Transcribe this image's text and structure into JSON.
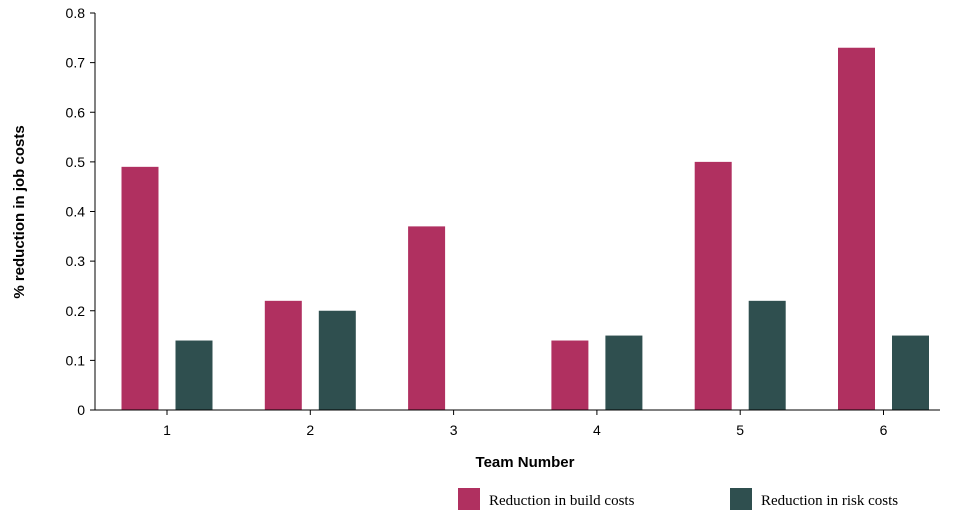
{
  "chart_data": {
    "type": "bar",
    "title": "",
    "xlabel": "Team Number",
    "ylabel": "% reduction in job costs",
    "categories": [
      "1",
      "2",
      "3",
      "4",
      "5",
      "6"
    ],
    "series": [
      {
        "name": "Reduction in build costs",
        "values": [
          0.49,
          0.22,
          0.37,
          0.14,
          0.5,
          0.73
        ],
        "color": "#b03060"
      },
      {
        "name": "Reduction in risk costs",
        "values": [
          0.14,
          0.2,
          0.0,
          0.15,
          0.22,
          0.15
        ],
        "color": "#2f4f4f"
      }
    ],
    "ylim": [
      0,
      0.8
    ],
    "yticks": [
      "0",
      "0.1",
      "0.2",
      "0.3",
      "0.4",
      "0.5",
      "0.6",
      "0.7",
      "0.8"
    ],
    "grid": false,
    "legend_position": "bottom-right"
  }
}
